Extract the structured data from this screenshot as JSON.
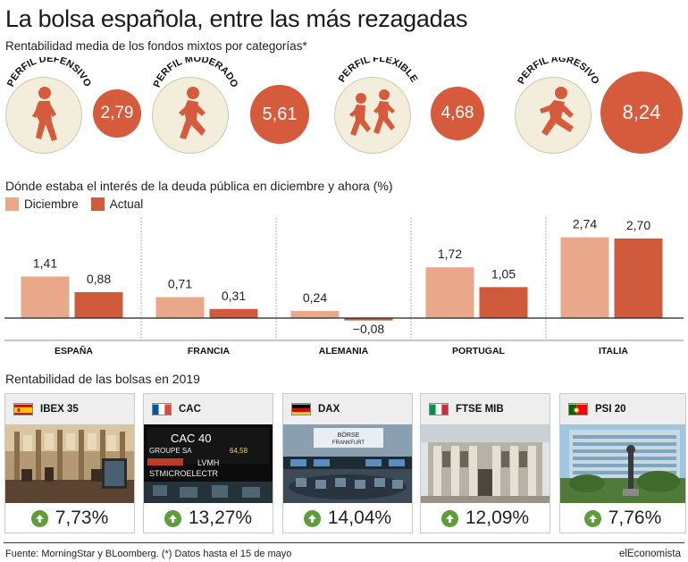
{
  "header": {
    "title": "La bolsa española, entre las más rezagadas",
    "subtitle": "Rentabilidad media de los fondos mixtos por categorías*"
  },
  "profiles": [
    {
      "label": "PERFIL DEFENSIVO",
      "value": "2,79",
      "icon": "walking-runner-icon"
    },
    {
      "label": "PERFIL MODERADO",
      "value": "5,61",
      "icon": "jogging-runner-icon"
    },
    {
      "label": "PERFIL FLEXIBLE",
      "value": "4,68",
      "icon": "two-runners-icon"
    },
    {
      "label": "PERFIL AGRESIVO",
      "value": "8,24",
      "icon": "sprinting-runner-icon"
    }
  ],
  "debt": {
    "title": "Dónde estaba el interés de la deuda pública en diciembre y ahora (%)",
    "legend_diciembre": "Diciembre",
    "legend_actual": "Actual"
  },
  "chart_data": {
    "type": "bar",
    "categories": [
      "ESPAÑA",
      "FRANCIA",
      "ALEMANIA",
      "PORTUGAL",
      "ITALIA"
    ],
    "series": [
      {
        "name": "Diciembre",
        "values": [
          1.41,
          0.71,
          0.24,
          1.72,
          2.74
        ],
        "labels": [
          "1,41",
          "0,71",
          "0,24",
          "1,72",
          "2,74"
        ]
      },
      {
        "name": "Actual",
        "values": [
          0.88,
          0.31,
          -0.08,
          1.05,
          2.7
        ],
        "labels": [
          "0,88",
          "0,31",
          "−0,08",
          "1,05",
          "2,70"
        ]
      }
    ],
    "colors": {
      "Diciembre": "#eaa88a",
      "Actual": "#d05a3c"
    },
    "grid": false,
    "legend": "top-left"
  },
  "markets": {
    "title": "Rentabilidad de las bolsas en 2019",
    "items": [
      {
        "name": "IBEX 35",
        "country": "spain-flag",
        "value": "7,73%"
      },
      {
        "name": "CAC",
        "country": "france-flag",
        "value": "13,27%"
      },
      {
        "name": "DAX",
        "country": "germany-flag",
        "value": "14,04%"
      },
      {
        "name": "FTSE MIB",
        "country": "italy-flag",
        "value": "12,09%"
      },
      {
        "name": "PSI 20",
        "country": "portugal-flag",
        "value": "7,76%"
      }
    ],
    "photo_text": {
      "cac_board": "CAC 40",
      "cac_row1": "GROUPE SA",
      "cac_row2": "LVMH",
      "cac_row3": "STMICROELECTR",
      "cac_value": "64,58",
      "dax_sign1": "BÖRSE",
      "dax_sign2": "FRANKFURT"
    }
  },
  "footer": {
    "source": "Fuente: MorningStar y BLoomberg. (*) Datos hasta el 15 de mayo",
    "brand": "elEconomista"
  }
}
